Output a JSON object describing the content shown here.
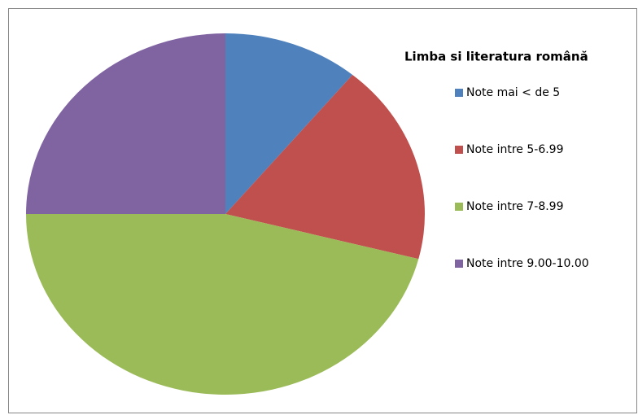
{
  "chart_data": {
    "type": "pie",
    "title": "Limba si literatura română",
    "categories": [
      "Note mai < de 5",
      "Note intre 5-6.99",
      "Note intre 7-8.99",
      "Note intre 9.00-10.00"
    ],
    "values": [
      11,
      18,
      46,
      25
    ],
    "colors": [
      "#4f81bd",
      "#c0504d",
      "#9bbb59",
      "#8064a2"
    ],
    "legend": "right"
  }
}
